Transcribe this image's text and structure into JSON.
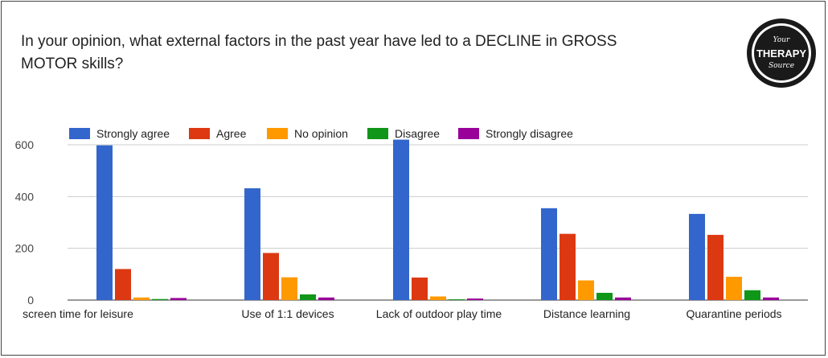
{
  "question": "In your opinion, what external factors in the past year have led to a DECLINE in GROSS MOTOR skills?",
  "logo": {
    "top": "Your",
    "middle": "THERAPY",
    "bottom": "Source"
  },
  "chart_data": {
    "type": "bar",
    "title": "In your opinion, what external factors in the past year have led to a DECLINE in GROSS MOTOR skills?",
    "categories": [
      "screen time for leisure",
      "Use of 1:1 devices",
      "Lack of outdoor play time",
      "Distance learning",
      "Quarantine periods"
    ],
    "series": [
      {
        "name": "Strongly agree",
        "color": "#3366cc",
        "values": [
          598,
          432,
          620,
          355,
          333
        ]
      },
      {
        "name": "Agree",
        "color": "#dc3912",
        "values": [
          120,
          182,
          87,
          256,
          252
        ]
      },
      {
        "name": "No opinion",
        "color": "#ff9900",
        "values": [
          10,
          88,
          14,
          76,
          90
        ]
      },
      {
        "name": "Disagree",
        "color": "#109618",
        "values": [
          4,
          22,
          3,
          28,
          38
        ]
      },
      {
        "name": "Strongly disagree",
        "color": "#990099",
        "values": [
          8,
          10,
          6,
          10,
          10
        ]
      }
    ],
    "yticks": [
      0,
      200,
      400,
      600
    ],
    "ylim": [
      0,
      600
    ],
    "grid": true,
    "legend": "top"
  }
}
